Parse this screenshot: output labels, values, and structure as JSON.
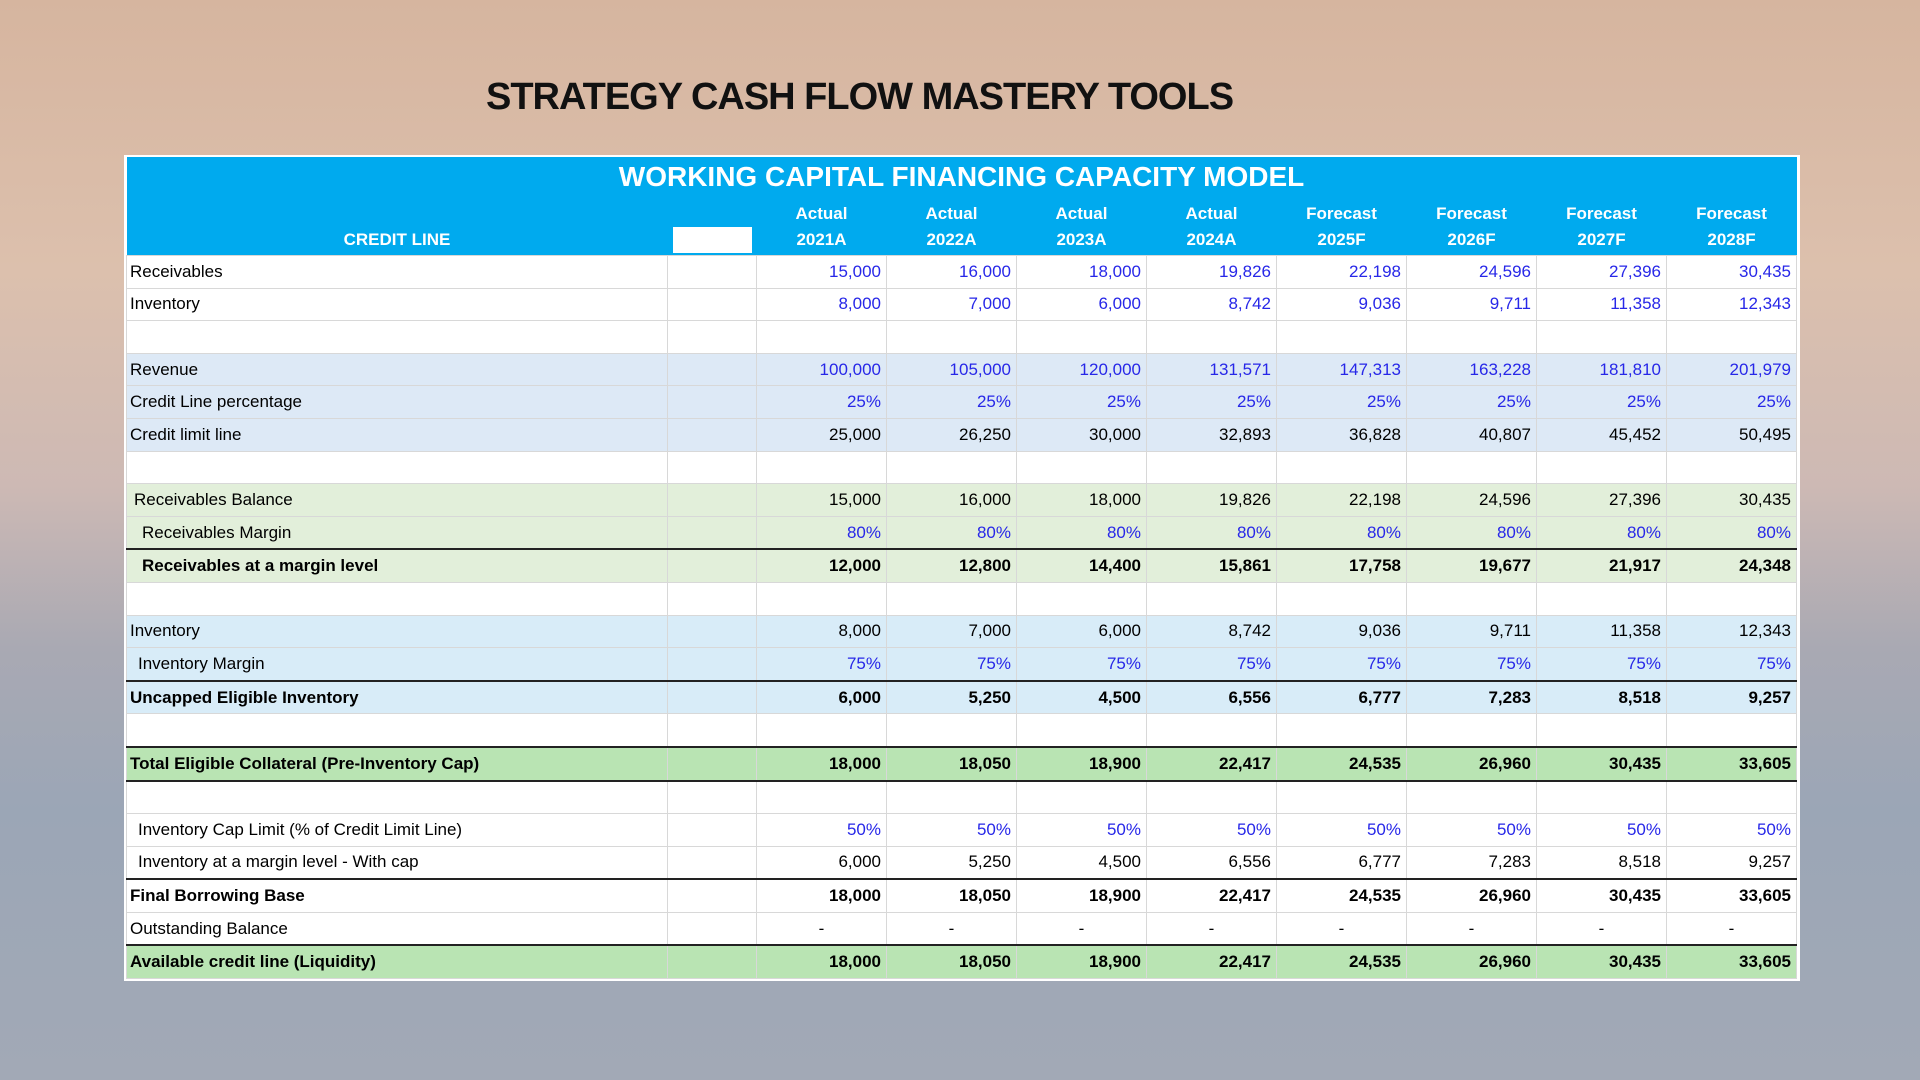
{
  "header": {
    "title": "STRATEGY CASH FLOW MASTERY TOOLS"
  },
  "table": {
    "title": "WORKING  CAPITAL FINANCING CAPACITY MODEL",
    "label_header": "CREDIT LINE",
    "columns": [
      {
        "kind": "Actual",
        "period": "2021A"
      },
      {
        "kind": "Actual",
        "period": "2022A"
      },
      {
        "kind": "Actual",
        "period": "2023A"
      },
      {
        "kind": "Actual",
        "period": "2024A"
      },
      {
        "kind": "Forecast",
        "period": "2025F"
      },
      {
        "kind": "Forecast",
        "period": "2026F"
      },
      {
        "kind": "Forecast",
        "period": "2027F"
      },
      {
        "kind": "Forecast",
        "period": "2028F"
      }
    ],
    "rows": [
      {
        "label": "Receivables",
        "values": [
          "15,000",
          "16,000",
          "18,000",
          "19,826",
          "22,198",
          "24,596",
          "27,396",
          "30,435"
        ]
      },
      {
        "label": "Inventory",
        "values": [
          "8,000",
          "7,000",
          "6,000",
          "8,742",
          "9,036",
          "9,711",
          "11,358",
          "12,343"
        ]
      },
      {
        "label": "Revenue",
        "values": [
          "100,000",
          "105,000",
          "120,000",
          "131,571",
          "147,313",
          "163,228",
          "181,810",
          "201,979"
        ]
      },
      {
        "label": "Credit Line percentage",
        "values": [
          "25%",
          "25%",
          "25%",
          "25%",
          "25%",
          "25%",
          "25%",
          "25%"
        ]
      },
      {
        "label": "Credit limit line",
        "values": [
          "25,000",
          "26,250",
          "30,000",
          "32,893",
          "36,828",
          "40,807",
          "45,452",
          "50,495"
        ]
      },
      {
        "label": "Receivables Balance",
        "values": [
          "15,000",
          "16,000",
          "18,000",
          "19,826",
          "22,198",
          "24,596",
          "27,396",
          "30,435"
        ]
      },
      {
        "label": "Receivables Margin",
        "values": [
          "80%",
          "80%",
          "80%",
          "80%",
          "80%",
          "80%",
          "80%",
          "80%"
        ]
      },
      {
        "label": "Receivables at a margin level",
        "values": [
          "12,000",
          "12,800",
          "14,400",
          "15,861",
          "17,758",
          "19,677",
          "21,917",
          "24,348"
        ]
      },
      {
        "label": "Inventory",
        "values": [
          "8,000",
          "7,000",
          "6,000",
          "8,742",
          "9,036",
          "9,711",
          "11,358",
          "12,343"
        ]
      },
      {
        "label": "Inventory Margin",
        "values": [
          "75%",
          "75%",
          "75%",
          "75%",
          "75%",
          "75%",
          "75%",
          "75%"
        ]
      },
      {
        "label": "Uncapped Eligible Inventory",
        "values": [
          "6,000",
          "5,250",
          "4,500",
          "6,556",
          "6,777",
          "7,283",
          "8,518",
          "9,257"
        ]
      },
      {
        "label": "Total Eligible Collateral (Pre-Inventory Cap)",
        "values": [
          "18,000",
          "18,050",
          "18,900",
          "22,417",
          "24,535",
          "26,960",
          "30,435",
          "33,605"
        ]
      },
      {
        "label": "Inventory Cap Limit (% of Credit Limit Line)",
        "values": [
          "50%",
          "50%",
          "50%",
          "50%",
          "50%",
          "50%",
          "50%",
          "50%"
        ]
      },
      {
        "label": "Inventory at a margin level - With cap",
        "values": [
          "6,000",
          "5,250",
          "4,500",
          "6,556",
          "6,777",
          "7,283",
          "8,518",
          "9,257"
        ]
      },
      {
        "label": "Final Borrowing Base",
        "values": [
          "18,000",
          "18,050",
          "18,900",
          "22,417",
          "24,535",
          "26,960",
          "30,435",
          "33,605"
        ]
      },
      {
        "label": "Outstanding Balance",
        "values": [
          "-",
          "-",
          "-",
          "-",
          "-",
          "-",
          "-",
          "-"
        ]
      },
      {
        "label": "Available credit line (Liquidity)",
        "values": [
          "18,000",
          "18,050",
          "18,900",
          "22,417",
          "24,535",
          "26,960",
          "30,435",
          "33,605"
        ]
      }
    ]
  }
}
